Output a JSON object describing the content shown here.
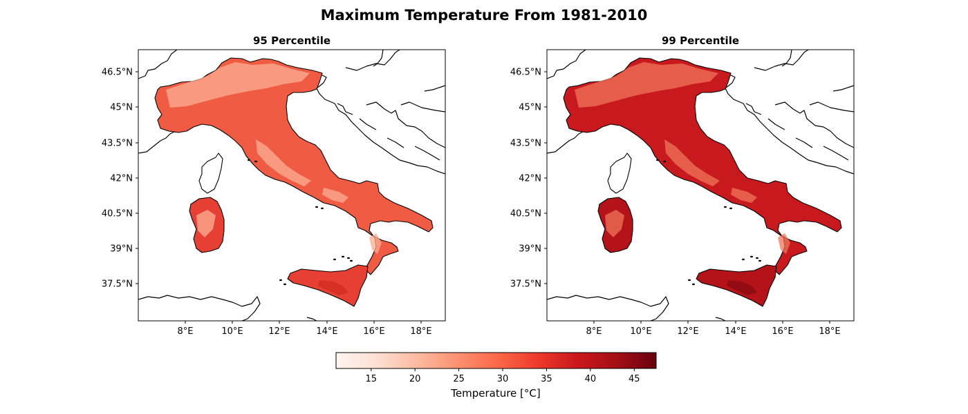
{
  "figure": {
    "title": "Maximum Temperature From 1981-2010"
  },
  "panels": [
    {
      "title": "95 Percentile",
      "field_fill": "#ef5b43",
      "highland_fill": "#fcae93",
      "island_fill": "#e64034"
    },
    {
      "title": "99 Percentile",
      "field_fill": "#c8191f",
      "highland_fill": "#f0745a",
      "island_fill": "#b5131a"
    }
  ],
  "map_axes": {
    "x_ticks": [
      "8°E",
      "10°E",
      "12°E",
      "14°E",
      "16°E",
      "18°E"
    ],
    "y_ticks": [
      "46.5°N",
      "45°N",
      "43.5°N",
      "42°N",
      "40.5°N",
      "39°N",
      "37.5°N"
    ]
  },
  "colorbar": {
    "label": "Temperature [°C]",
    "ticks": [
      "15",
      "20",
      "25",
      "30",
      "35",
      "40",
      "45"
    ],
    "colormap": [
      "#fff5f0",
      "#fee0d2",
      "#fcbba1",
      "#fc9272",
      "#fb6a4a",
      "#ef3b2c",
      "#cb181d",
      "#a50f15",
      "#67000d"
    ]
  }
}
